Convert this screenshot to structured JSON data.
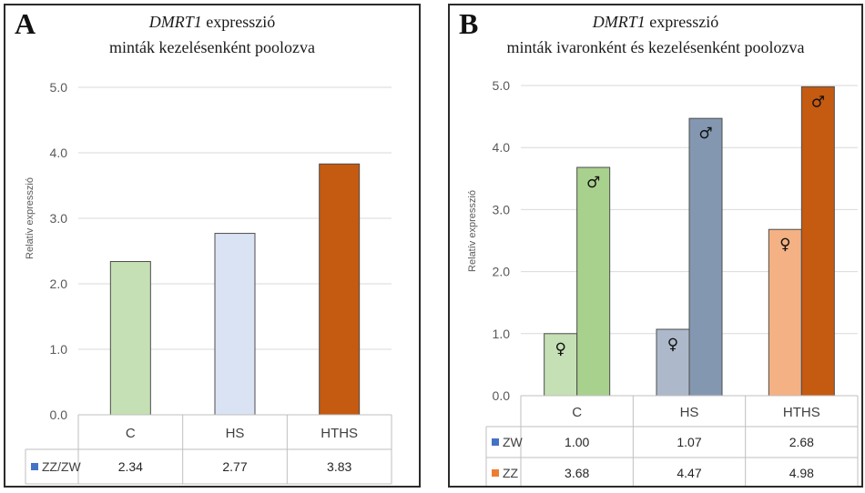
{
  "panel_a": {
    "letter": "A",
    "title_gene": "DMRT1",
    "title_word": "expresszió",
    "title_line2": "minták kezelésenként poolozva"
  },
  "panel_b": {
    "letter": "B",
    "title_gene": "DMRT1",
    "title_word": "expresszió",
    "title_line2": "minták ivaronként és kezelésenként poolozva"
  },
  "chart_data": [
    {
      "type": "bar",
      "title": "DMRT1 expresszió minták kezelésenként poolozva",
      "ylabel": "Relatív expresszió",
      "ylim": [
        0,
        5
      ],
      "yticks": [
        "0.0",
        "1.0",
        "2.0",
        "3.0",
        "4.0",
        "5.0"
      ],
      "grid": true,
      "categories": [
        "C",
        "HS",
        "HTHS"
      ],
      "series": [
        {
          "name": "ZZ/ZW",
          "values": [
            2.34,
            2.77,
            3.83
          ],
          "labels": [
            "2.34",
            "2.77",
            "3.83"
          ],
          "legend_color": "#4472C4"
        }
      ],
      "bar_colors": [
        "#C5E0B4",
        "#DAE3F3",
        "#C55A11"
      ],
      "legend_placement": "data-table-below"
    },
    {
      "type": "bar",
      "title": "DMRT1 expresszió minták ivaronként és kezelésenként poolozva",
      "ylabel": "Relatív expresszió",
      "ylim": [
        0,
        5
      ],
      "yticks": [
        "0.0",
        "1.0",
        "2.0",
        "3.0",
        "4.0",
        "5.0"
      ],
      "grid": true,
      "categories": [
        "C",
        "HS",
        "HTHS"
      ],
      "series": [
        {
          "name": "ZW",
          "values": [
            1.0,
            1.07,
            2.68
          ],
          "labels": [
            "1.00",
            "1.07",
            "2.68"
          ],
          "legend_color": "#4472C4",
          "bar_colors": [
            "#C5E0B4",
            "#ADB9CA",
            "#F4B183"
          ],
          "symbol": "♀"
        },
        {
          "name": "ZZ",
          "values": [
            3.68,
            4.47,
            4.98
          ],
          "labels": [
            "3.68",
            "4.47",
            "4.98"
          ],
          "legend_color": "#ED7D31",
          "bar_colors": [
            "#A9D18E",
            "#8497B0",
            "#C55A11"
          ],
          "symbol": "♂"
        }
      ],
      "legend_placement": "data-table-below"
    }
  ]
}
